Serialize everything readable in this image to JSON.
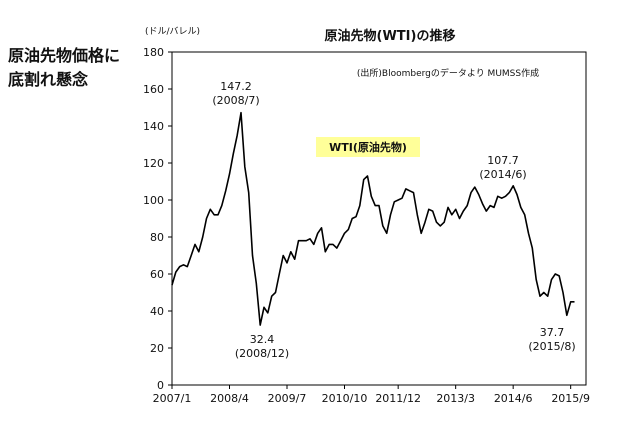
{
  "side_caption": "原油先物価格に\n底割れ懸念",
  "chart_data": {
    "type": "line",
    "title": "原油先物(WTI)の推移",
    "unit_label": "(ドル/バレル)",
    "source": "(出所)Bloombergのデータより MUMSS作成",
    "legend": "WTI(原油先物)",
    "legend_bg": "#ffff99",
    "line_color": "#000000",
    "grid": false,
    "ylim": [
      0,
      180
    ],
    "y_ticks": [
      "0",
      "20",
      "40",
      "60",
      "80",
      "100",
      "120",
      "140",
      "160",
      "180"
    ],
    "x_ticks": [
      "2007/1",
      "2008/4",
      "2009/7",
      "2010/10",
      "2011/12",
      "2013/3",
      "2014/6",
      "2015/9"
    ],
    "x_tick_dates": [
      "2007-01",
      "2008-04",
      "2009-07",
      "2010-10",
      "2011-12",
      "2013-03",
      "2014-06",
      "2015-09"
    ],
    "xlim": [
      "2007-01",
      "2016-01"
    ],
    "annotations": [
      {
        "value": "147.2",
        "date": "(2008/7)"
      },
      {
        "value": "32.4",
        "date": "(2008/12)"
      },
      {
        "value": "107.7",
        "date": "(2014/6)"
      },
      {
        "value": "37.7",
        "date": "(2015/8)"
      }
    ],
    "series": [
      {
        "x": [
          "2007-01",
          "2007-02",
          "2007-03",
          "2007-04",
          "2007-05",
          "2007-06",
          "2007-07",
          "2007-08",
          "2007-09",
          "2007-10",
          "2007-11",
          "2007-12",
          "2008-01",
          "2008-02",
          "2008-03",
          "2008-04",
          "2008-05",
          "2008-06",
          "2008-07",
          "2008-08",
          "2008-09",
          "2008-10",
          "2008-11",
          "2008-12",
          "2009-01",
          "2009-02",
          "2009-03",
          "2009-04",
          "2009-05",
          "2009-06",
          "2009-07",
          "2009-08",
          "2009-09",
          "2009-10",
          "2009-11",
          "2009-12",
          "2010-01",
          "2010-02",
          "2010-03",
          "2010-04",
          "2010-05",
          "2010-06",
          "2010-07",
          "2010-08",
          "2010-09",
          "2010-10",
          "2010-11",
          "2010-12",
          "2011-01",
          "2011-02",
          "2011-03",
          "2011-04",
          "2011-05",
          "2011-06",
          "2011-07",
          "2011-08",
          "2011-09",
          "2011-10",
          "2011-11",
          "2011-12",
          "2012-01",
          "2012-02",
          "2012-03",
          "2012-04",
          "2012-05",
          "2012-06",
          "2012-07",
          "2012-08",
          "2012-09",
          "2012-10",
          "2012-11",
          "2012-12",
          "2013-01",
          "2013-02",
          "2013-03",
          "2013-04",
          "2013-05",
          "2013-06",
          "2013-07",
          "2013-08",
          "2013-09",
          "2013-10",
          "2013-11",
          "2013-12",
          "2014-01",
          "2014-02",
          "2014-03",
          "2014-04",
          "2014-05",
          "2014-06",
          "2014-07",
          "2014-08",
          "2014-09",
          "2014-10",
          "2014-11",
          "2014-12",
          "2015-01",
          "2015-02",
          "2015-03",
          "2015-04",
          "2015-05",
          "2015-06",
          "2015-07",
          "2015-08",
          "2015-09",
          "2015-10"
        ],
        "y": [
          54,
          61,
          64,
          65,
          64,
          70,
          76,
          72,
          80,
          90,
          95,
          92,
          92,
          97,
          105,
          114,
          125,
          135,
          147.2,
          118,
          104,
          70,
          55,
          32.4,
          42,
          39,
          48,
          50,
          60,
          70,
          66,
          72,
          68,
          78,
          78,
          78,
          79,
          76,
          82,
          85,
          72,
          76,
          76,
          74,
          78,
          82,
          84,
          90,
          91,
          97,
          111,
          113,
          102,
          97,
          97,
          86,
          82,
          92,
          99,
          100,
          101,
          106,
          105,
          104,
          92,
          82,
          88,
          95,
          94,
          88,
          86,
          88,
          96,
          92,
          95,
          90,
          94,
          97,
          104,
          107,
          103,
          98,
          94,
          97,
          96,
          102,
          101,
          102,
          104,
          107.7,
          103,
          96,
          92,
          82,
          74,
          57,
          48,
          50,
          48,
          57,
          60,
          59,
          50,
          37.7,
          45,
          45
        ]
      }
    ]
  }
}
